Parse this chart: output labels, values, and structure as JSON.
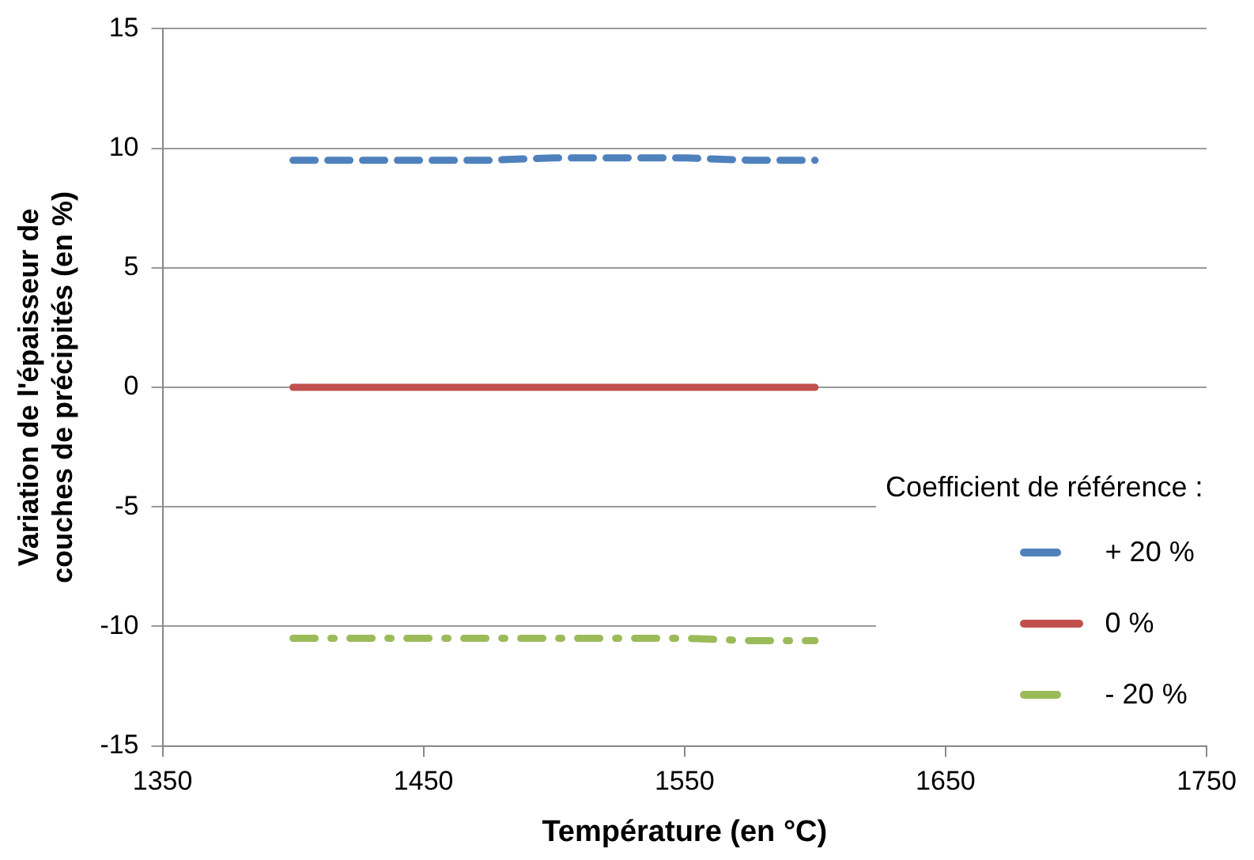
{
  "chart_data": {
    "type": "line",
    "xlabel": "Température (en °C)",
    "ylabel": "Variation de l'épaisseur de couches de précipités (en %)",
    "legend_title": "Coefficient de référence :",
    "x": [
      1400,
      1425,
      1450,
      1475,
      1500,
      1525,
      1550,
      1575,
      1600
    ],
    "series": [
      {
        "name": "+ 20 %",
        "color": "#4f81bd",
        "line_style": "dashed",
        "values": [
          9.5,
          9.5,
          9.5,
          9.5,
          9.6,
          9.6,
          9.6,
          9.5,
          9.5
        ]
      },
      {
        "name": "0 %",
        "color": "#c0504d",
        "line_style": "solid",
        "values": [
          0,
          0,
          0,
          0,
          0,
          0,
          0,
          0,
          0
        ]
      },
      {
        "name": "- 20 %",
        "color": "#9bbb59",
        "line_style": "dashdot",
        "values": [
          -10.5,
          -10.5,
          -10.5,
          -10.5,
          -10.5,
          -10.5,
          -10.5,
          -10.6,
          -10.6
        ]
      }
    ],
    "xlim": [
      1350,
      1750
    ],
    "xticks": [
      1350,
      1450,
      1550,
      1650,
      1750
    ],
    "ylim": [
      -15,
      15
    ],
    "yticks": [
      -15,
      -10,
      -5,
      0,
      5,
      10,
      15
    ],
    "grid": "y",
    "legend": "bottom right",
    "marker": "none"
  }
}
